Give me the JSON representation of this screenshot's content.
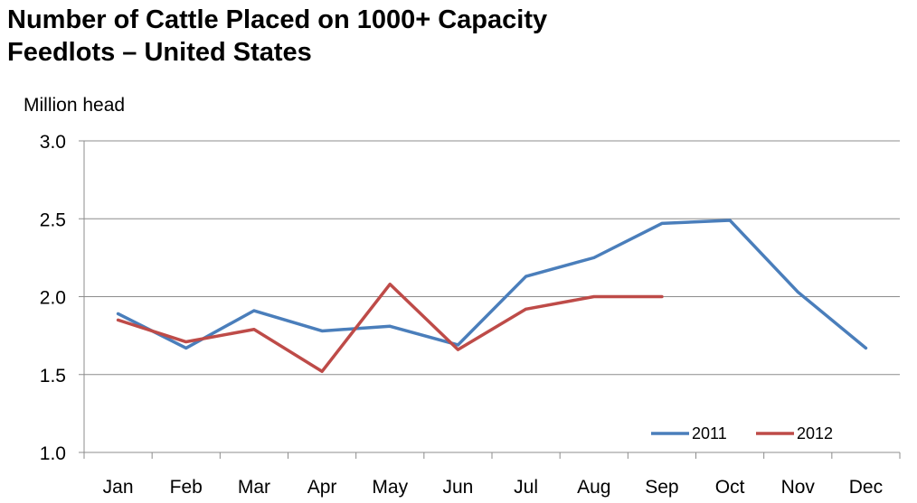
{
  "chart_data": {
    "type": "line",
    "title_line1": "Number of Cattle Placed on 1000+ Capacity",
    "title_line2": "Feedlots – United States",
    "ylabel": "Million head",
    "categories": [
      "Jan",
      "Feb",
      "Mar",
      "Apr",
      "May",
      "Jun",
      "Jul",
      "Aug",
      "Sep",
      "Oct",
      "Nov",
      "Dec"
    ],
    "ylim": [
      1.0,
      3.0
    ],
    "yticks": [
      "1.0",
      "1.5",
      "2.0",
      "2.5",
      "3.0"
    ],
    "grid": true,
    "legend_position": "bottom-right",
    "series": [
      {
        "name": "2011",
        "color": "#4a7ebb",
        "values": [
          1.89,
          1.67,
          1.91,
          1.78,
          1.81,
          1.69,
          2.13,
          2.25,
          2.47,
          2.49,
          2.03,
          1.67
        ]
      },
      {
        "name": "2012",
        "color": "#be4b48",
        "values": [
          1.85,
          1.71,
          1.79,
          1.52,
          2.08,
          1.66,
          1.92,
          2.0,
          2.0,
          null,
          null,
          null
        ]
      }
    ]
  }
}
